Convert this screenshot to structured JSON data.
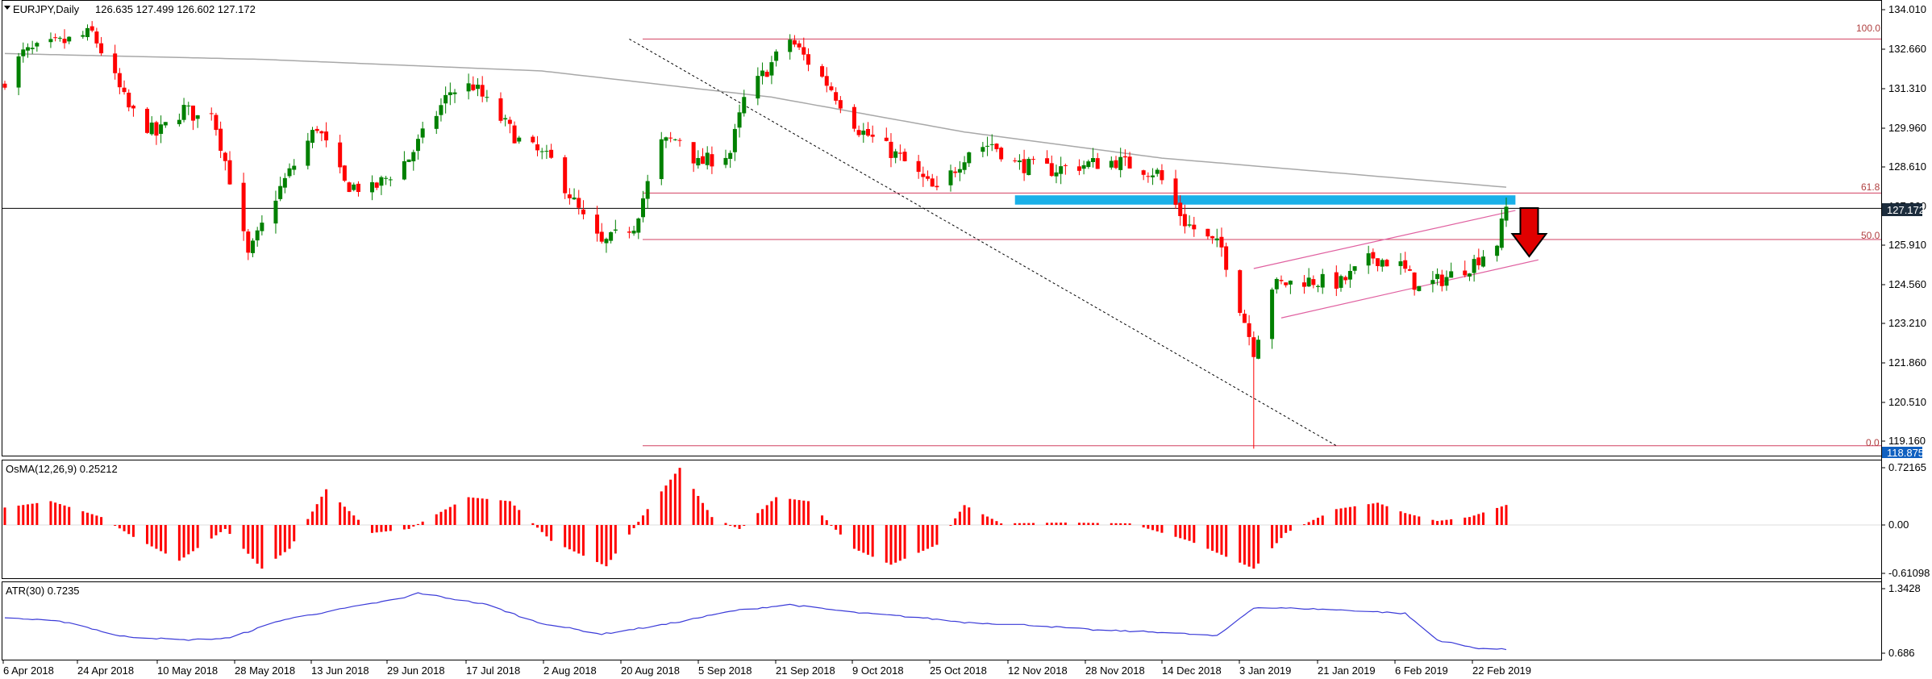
{
  "header": {
    "symbol_label": "EURJPY,Daily",
    "ohlc_label": "126.635 127.499 126.602 127.172",
    "menu_icon": "triangle-down-icon"
  },
  "price_axis": {
    "ticks": [
      "134.010",
      "132.660",
      "131.310",
      "129.960",
      "128.610",
      "127.260",
      "125.910",
      "124.560",
      "123.210",
      "121.860",
      "120.510",
      "119.160"
    ],
    "current_price": "127.172",
    "low_price": "118.875"
  },
  "osma": {
    "label": "OsMA(12,26,9) 0.25212",
    "ticks": [
      "0.72165",
      "0.00",
      "-0.61098"
    ]
  },
  "atr": {
    "label": "ATR(30) 0.7235",
    "ticks": [
      "1.3428",
      "0.686"
    ]
  },
  "fib_labels": [
    "100.0",
    "61.8",
    "50.0",
    "0.0"
  ],
  "time_axis": [
    "6 Apr 2018",
    "24 Apr 2018",
    "10 May 2018",
    "28 May 2018",
    "13 Jun 2018",
    "29 Jun 2018",
    "17 Jul 2018",
    "2 Aug 2018",
    "20 Aug 2018",
    "5 Sep 2018",
    "21 Sep 2018",
    "9 Oct 2018",
    "25 Oct 2018",
    "12 Nov 2018",
    "28 Nov 2018",
    "14 Dec 2018",
    "3 Jan 2019",
    "21 Jan 2019",
    "6 Feb 2019",
    "22 Feb 2019"
  ],
  "colors": {
    "bull": "#008000",
    "bear": "#ff0000",
    "ma": "#a8a8a8",
    "fib": "#d24060",
    "channel": "#e060a0",
    "zone": "#1ab0e8",
    "atr_line": "#3a3ad8",
    "current_price_bg": "#1c2c3c",
    "low_price_bg": "#1060c0",
    "arrow": "#e00000"
  },
  "chart_data": [
    {
      "type": "candlestick",
      "title": "EURJPY,Daily",
      "ylim": [
        118.9,
        134.3
      ],
      "x_range": [
        "2018-04-06",
        "2019-02-27"
      ],
      "waypoints": [
        {
          "x": "2018-04-06",
          "close": 131.6
        },
        {
          "x": "2018-04-10",
          "close": 132.5
        },
        {
          "x": "2018-04-19",
          "close": 132.9
        },
        {
          "x": "2018-04-25",
          "close": 133.2
        },
        {
          "x": "2018-04-27",
          "close": 132.6
        },
        {
          "x": "2018-05-03",
          "close": 130.6
        },
        {
          "x": "2018-05-09",
          "close": 129.7
        },
        {
          "x": "2018-05-15",
          "close": 130.6
        },
        {
          "x": "2018-05-18",
          "close": 130.3
        },
        {
          "x": "2018-05-21",
          "close": 130.6
        },
        {
          "x": "2018-05-25",
          "close": 128.2
        },
        {
          "x": "2018-05-29",
          "close": 125.5
        },
        {
          "x": "2018-06-04",
          "close": 127.6
        },
        {
          "x": "2018-06-13",
          "close": 130.0
        },
        {
          "x": "2018-06-19",
          "close": 128.0
        },
        {
          "x": "2018-06-25",
          "close": 127.8
        },
        {
          "x": "2018-07-03",
          "close": 128.9
        },
        {
          "x": "2018-07-12",
          "close": 131.2
        },
        {
          "x": "2018-07-17",
          "close": 131.4
        },
        {
          "x": "2018-07-20",
          "close": 130.8
        },
        {
          "x": "2018-07-27",
          "close": 129.5
        },
        {
          "x": "2018-08-03",
          "close": 128.8
        },
        {
          "x": "2018-08-10",
          "close": 126.8
        },
        {
          "x": "2018-08-14",
          "close": 125.9
        },
        {
          "x": "2018-08-21",
          "close": 126.6
        },
        {
          "x": "2018-08-27",
          "close": 129.4
        },
        {
          "x": "2018-08-31",
          "close": 129.6
        },
        {
          "x": "2018-09-04",
          "close": 128.7
        },
        {
          "x": "2018-09-11",
          "close": 129.1
        },
        {
          "x": "2018-09-14",
          "close": 130.9
        },
        {
          "x": "2018-09-24",
          "close": 133.0
        },
        {
          "x": "2018-09-27",
          "close": 132.4
        },
        {
          "x": "2018-10-03",
          "close": 131.3
        },
        {
          "x": "2018-10-09",
          "close": 129.9
        },
        {
          "x": "2018-10-18",
          "close": 128.9
        },
        {
          "x": "2018-10-26",
          "close": 127.7
        },
        {
          "x": "2018-11-02",
          "close": 129.2
        },
        {
          "x": "2018-11-07",
          "close": 129.4
        },
        {
          "x": "2018-11-12",
          "close": 128.7
        },
        {
          "x": "2018-11-20",
          "close": 128.5
        },
        {
          "x": "2018-11-28",
          "close": 128.7
        },
        {
          "x": "2018-12-04",
          "close": 128.8
        },
        {
          "x": "2018-12-13",
          "close": 128.4
        },
        {
          "x": "2018-12-19",
          "close": 126.7
        },
        {
          "x": "2018-12-24",
          "close": 126.1
        },
        {
          "x": "2018-12-27",
          "close": 125.8
        },
        {
          "x": "2019-01-03",
          "close": 122.3
        },
        {
          "x": "2019-01-07",
          "close": 124.5
        },
        {
          "x": "2019-01-14",
          "close": 124.7
        },
        {
          "x": "2019-01-22",
          "close": 124.6
        },
        {
          "x": "2019-01-29",
          "close": 125.5
        },
        {
          "x": "2019-02-04",
          "close": 125.2
        },
        {
          "x": "2019-02-08",
          "close": 124.4
        },
        {
          "x": "2019-02-14",
          "close": 124.8
        },
        {
          "x": "2019-02-19",
          "close": 125.2
        },
        {
          "x": "2019-02-25",
          "close": 126.0
        },
        {
          "x": "2019-02-27",
          "close": 127.172
        }
      ],
      "moving_average_waypoints": [
        {
          "x": "2018-04-06",
          "y": 132.5
        },
        {
          "x": "2018-06-01",
          "y": 132.3
        },
        {
          "x": "2018-08-01",
          "y": 131.9
        },
        {
          "x": "2018-09-20",
          "y": 131.0
        },
        {
          "x": "2018-11-01",
          "y": 129.8
        },
        {
          "x": "2018-12-14",
          "y": 128.9
        },
        {
          "x": "2019-02-27",
          "y": 127.9
        }
      ],
      "fibonacci": [
        {
          "level": "100.0",
          "price": 133.0
        },
        {
          "level": "61.8",
          "price": 127.7
        },
        {
          "level": "50.0",
          "price": 126.1
        },
        {
          "level": "0.0",
          "price": 119.0
        }
      ],
      "resistance_zone": {
        "from": "2018-11-12",
        "to": "2019-03-01",
        "price_low": 127.3,
        "price_high": 127.62
      },
      "trendline": {
        "from": {
          "x": "2018-08-20",
          "y": 133.0
        },
        "to": {
          "x": "2019-01-21",
          "y": 119.0
        }
      },
      "channel": {
        "upper": {
          "from": {
            "x": "2019-01-03",
            "y": 125.1
          },
          "to": {
            "x": "2019-03-01",
            "y": 127.1
          }
        },
        "lower": {
          "from": {
            "x": "2019-01-09",
            "y": 123.4
          },
          "to": {
            "x": "2019-03-06",
            "y": 125.4
          }
        }
      },
      "annotation": {
        "type": "down-arrow",
        "x": "2019-03-04"
      }
    },
    {
      "type": "bar",
      "title": "OsMA(12,26,9) 0.25212",
      "ylim": [
        -0.72,
        0.85
      ],
      "waypoints": [
        {
          "x": "2018-04-06",
          "y": 0.22
        },
        {
          "x": "2018-04-16",
          "y": 0.3
        },
        {
          "x": "2018-04-27",
          "y": 0.1
        },
        {
          "x": "2018-05-04",
          "y": -0.15
        },
        {
          "x": "2018-05-14",
          "y": -0.45
        },
        {
          "x": "2018-05-24",
          "y": -0.05
        },
        {
          "x": "2018-06-01",
          "y": -0.55
        },
        {
          "x": "2018-06-07",
          "y": -0.3
        },
        {
          "x": "2018-06-15",
          "y": 0.45
        },
        {
          "x": "2018-06-25",
          "y": -0.1
        },
        {
          "x": "2018-07-03",
          "y": -0.05
        },
        {
          "x": "2018-07-16",
          "y": 0.35
        },
        {
          "x": "2018-07-25",
          "y": 0.3
        },
        {
          "x": "2018-08-03",
          "y": -0.2
        },
        {
          "x": "2018-08-15",
          "y": -0.52
        },
        {
          "x": "2018-08-24",
          "y": 0.2
        },
        {
          "x": "2018-08-31",
          "y": 0.72
        },
        {
          "x": "2018-09-07",
          "y": 0.1
        },
        {
          "x": "2018-09-13",
          "y": -0.05
        },
        {
          "x": "2018-09-21",
          "y": 0.35
        },
        {
          "x": "2018-09-28",
          "y": 0.3
        },
        {
          "x": "2018-10-08",
          "y": -0.3
        },
        {
          "x": "2018-10-16",
          "y": -0.5
        },
        {
          "x": "2018-10-26",
          "y": -0.25
        },
        {
          "x": "2018-11-01",
          "y": 0.25
        },
        {
          "x": "2018-11-09",
          "y": 0.02
        },
        {
          "x": "2018-11-23",
          "y": 0.03
        },
        {
          "x": "2018-12-07",
          "y": 0.02
        },
        {
          "x": "2018-12-20",
          "y": -0.2
        },
        {
          "x": "2019-01-03",
          "y": -0.55
        },
        {
          "x": "2019-01-10",
          "y": -0.1
        },
        {
          "x": "2019-01-21",
          "y": 0.2
        },
        {
          "x": "2019-01-30",
          "y": 0.28
        },
        {
          "x": "2019-02-05",
          "y": 0.15
        },
        {
          "x": "2019-02-12",
          "y": 0.05
        },
        {
          "x": "2019-02-19",
          "y": 0.1
        },
        {
          "x": "2019-02-27",
          "y": 0.25212
        }
      ]
    },
    {
      "type": "line",
      "title": "ATR(30) 0.7235",
      "ylim": [
        0.62,
        1.4
      ],
      "waypoints": [
        {
          "x": "2018-04-06",
          "y": 1.05
        },
        {
          "x": "2018-04-20",
          "y": 1.0
        },
        {
          "x": "2018-05-01",
          "y": 0.86
        },
        {
          "x": "2018-05-15",
          "y": 0.82
        },
        {
          "x": "2018-05-25",
          "y": 0.84
        },
        {
          "x": "2018-06-05",
          "y": 1.02
        },
        {
          "x": "2018-06-20",
          "y": 1.15
        },
        {
          "x": "2018-07-02",
          "y": 1.25
        },
        {
          "x": "2018-07-05",
          "y": 1.3
        },
        {
          "x": "2018-07-20",
          "y": 1.18
        },
        {
          "x": "2018-07-31",
          "y": 1.0
        },
        {
          "x": "2018-08-14",
          "y": 0.88
        },
        {
          "x": "2018-08-28",
          "y": 0.98
        },
        {
          "x": "2018-09-12",
          "y": 1.12
        },
        {
          "x": "2018-09-24",
          "y": 1.18
        },
        {
          "x": "2018-10-08",
          "y": 1.1
        },
        {
          "x": "2018-10-22",
          "y": 1.05
        },
        {
          "x": "2018-11-01",
          "y": 1.0
        },
        {
          "x": "2018-11-16",
          "y": 0.97
        },
        {
          "x": "2018-11-30",
          "y": 0.92
        },
        {
          "x": "2018-12-14",
          "y": 0.9
        },
        {
          "x": "2018-12-26",
          "y": 0.86
        },
        {
          "x": "2019-01-03",
          "y": 1.15
        },
        {
          "x": "2019-01-14",
          "y": 1.14
        },
        {
          "x": "2019-01-25",
          "y": 1.12
        },
        {
          "x": "2019-02-05",
          "y": 1.09
        },
        {
          "x": "2019-02-12",
          "y": 0.82
        },
        {
          "x": "2019-02-20",
          "y": 0.74
        },
        {
          "x": "2019-02-27",
          "y": 0.7235
        }
      ]
    }
  ]
}
